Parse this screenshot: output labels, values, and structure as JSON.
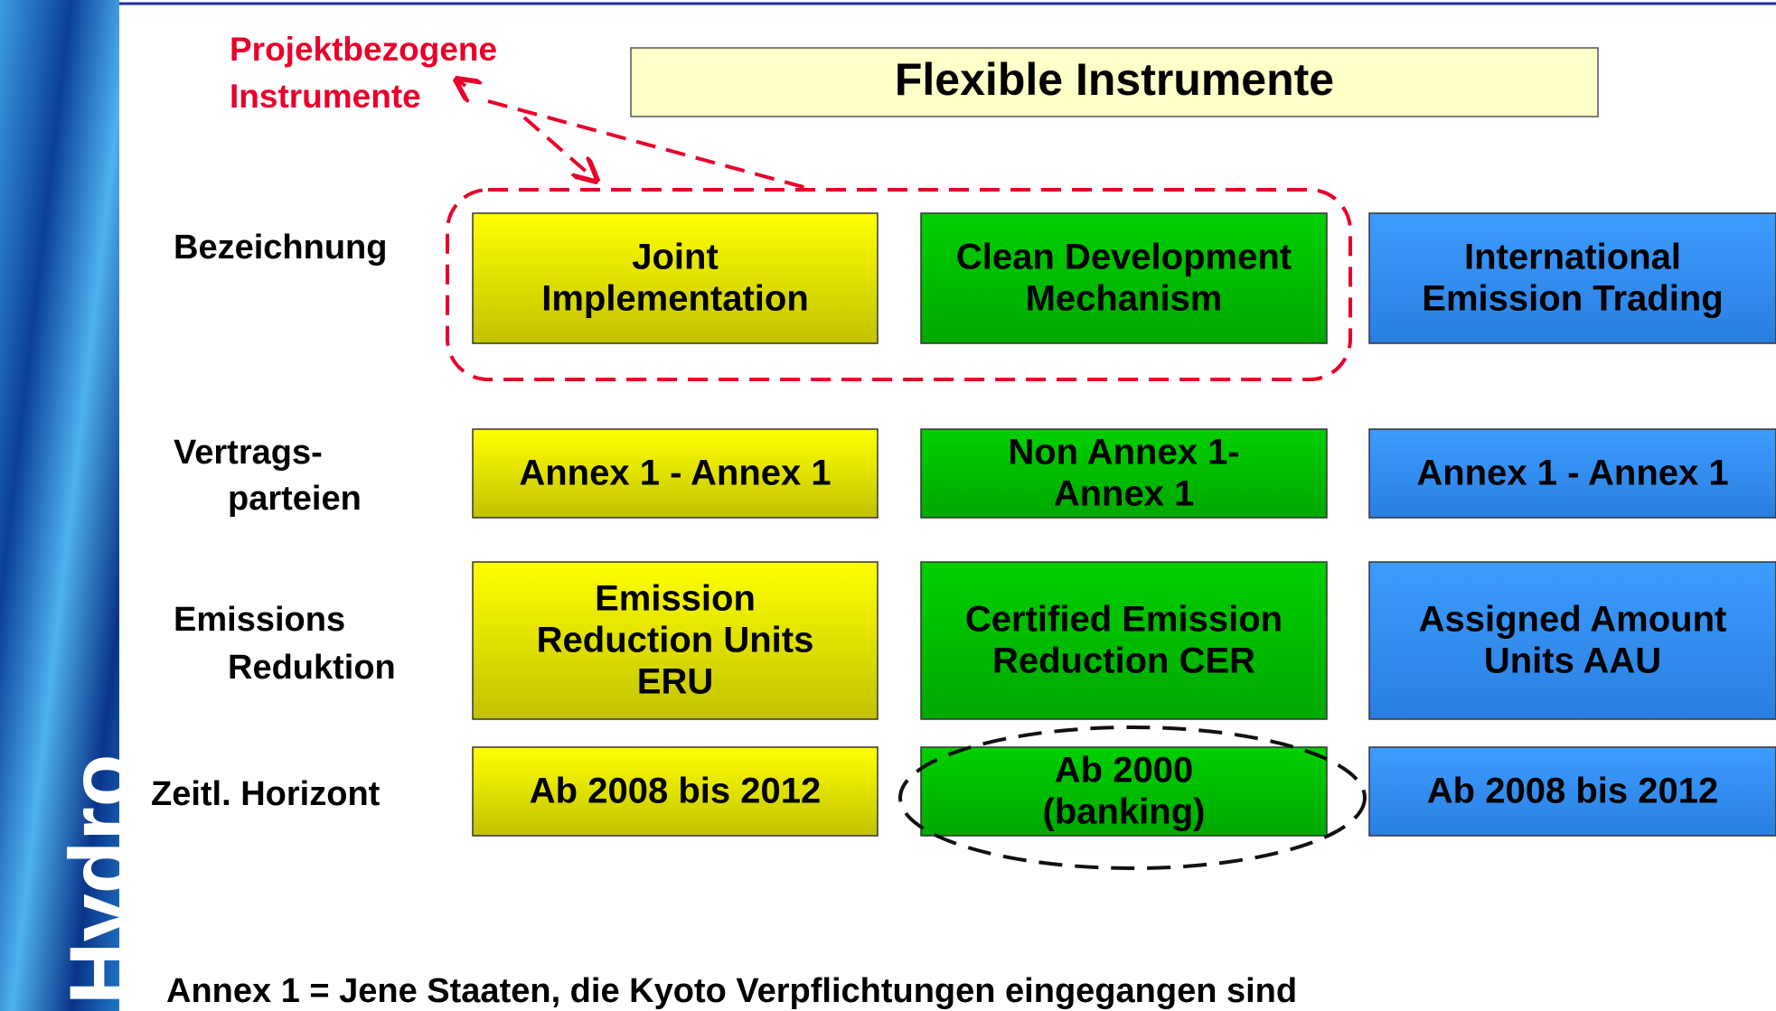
{
  "brand": "Hydro",
  "title": "Flexible Instrumente",
  "annotation": [
    "Projektbezogene",
    "Instrumente"
  ],
  "rows": [
    {
      "label": [
        "Bezeichnung"
      ],
      "cells": [
        [
          "Joint",
          "Implementation"
        ],
        [
          "Clean Development",
          "Mechanism"
        ],
        [
          "International",
          "Emission Trading"
        ]
      ]
    },
    {
      "label": [
        "Vertrags-",
        "parteien"
      ],
      "cells": [
        [
          "Annex 1 - Annex 1"
        ],
        [
          "Non Annex 1-",
          "Annex 1"
        ],
        [
          "Annex 1 - Annex 1"
        ]
      ]
    },
    {
      "label": [
        "Emissions",
        "Reduktion"
      ],
      "cells": [
        [
          "Emission",
          "Reduction Units",
          "ERU"
        ],
        [
          "Certified Emission",
          "Reduction CER"
        ],
        [
          "Assigned Amount",
          "Units AAU"
        ]
      ]
    },
    {
      "label": [
        "Zeitl. Horizont"
      ],
      "cells": [
        [
          "Ab 2008 bis 2012"
        ],
        [
          "Ab 2000",
          "(banking)"
        ],
        [
          "Ab 2008 bis 2012"
        ]
      ]
    }
  ],
  "footnote": "Annex 1 = Jene Staaten, die Kyoto Verpflichtungen eingegangen sind"
}
